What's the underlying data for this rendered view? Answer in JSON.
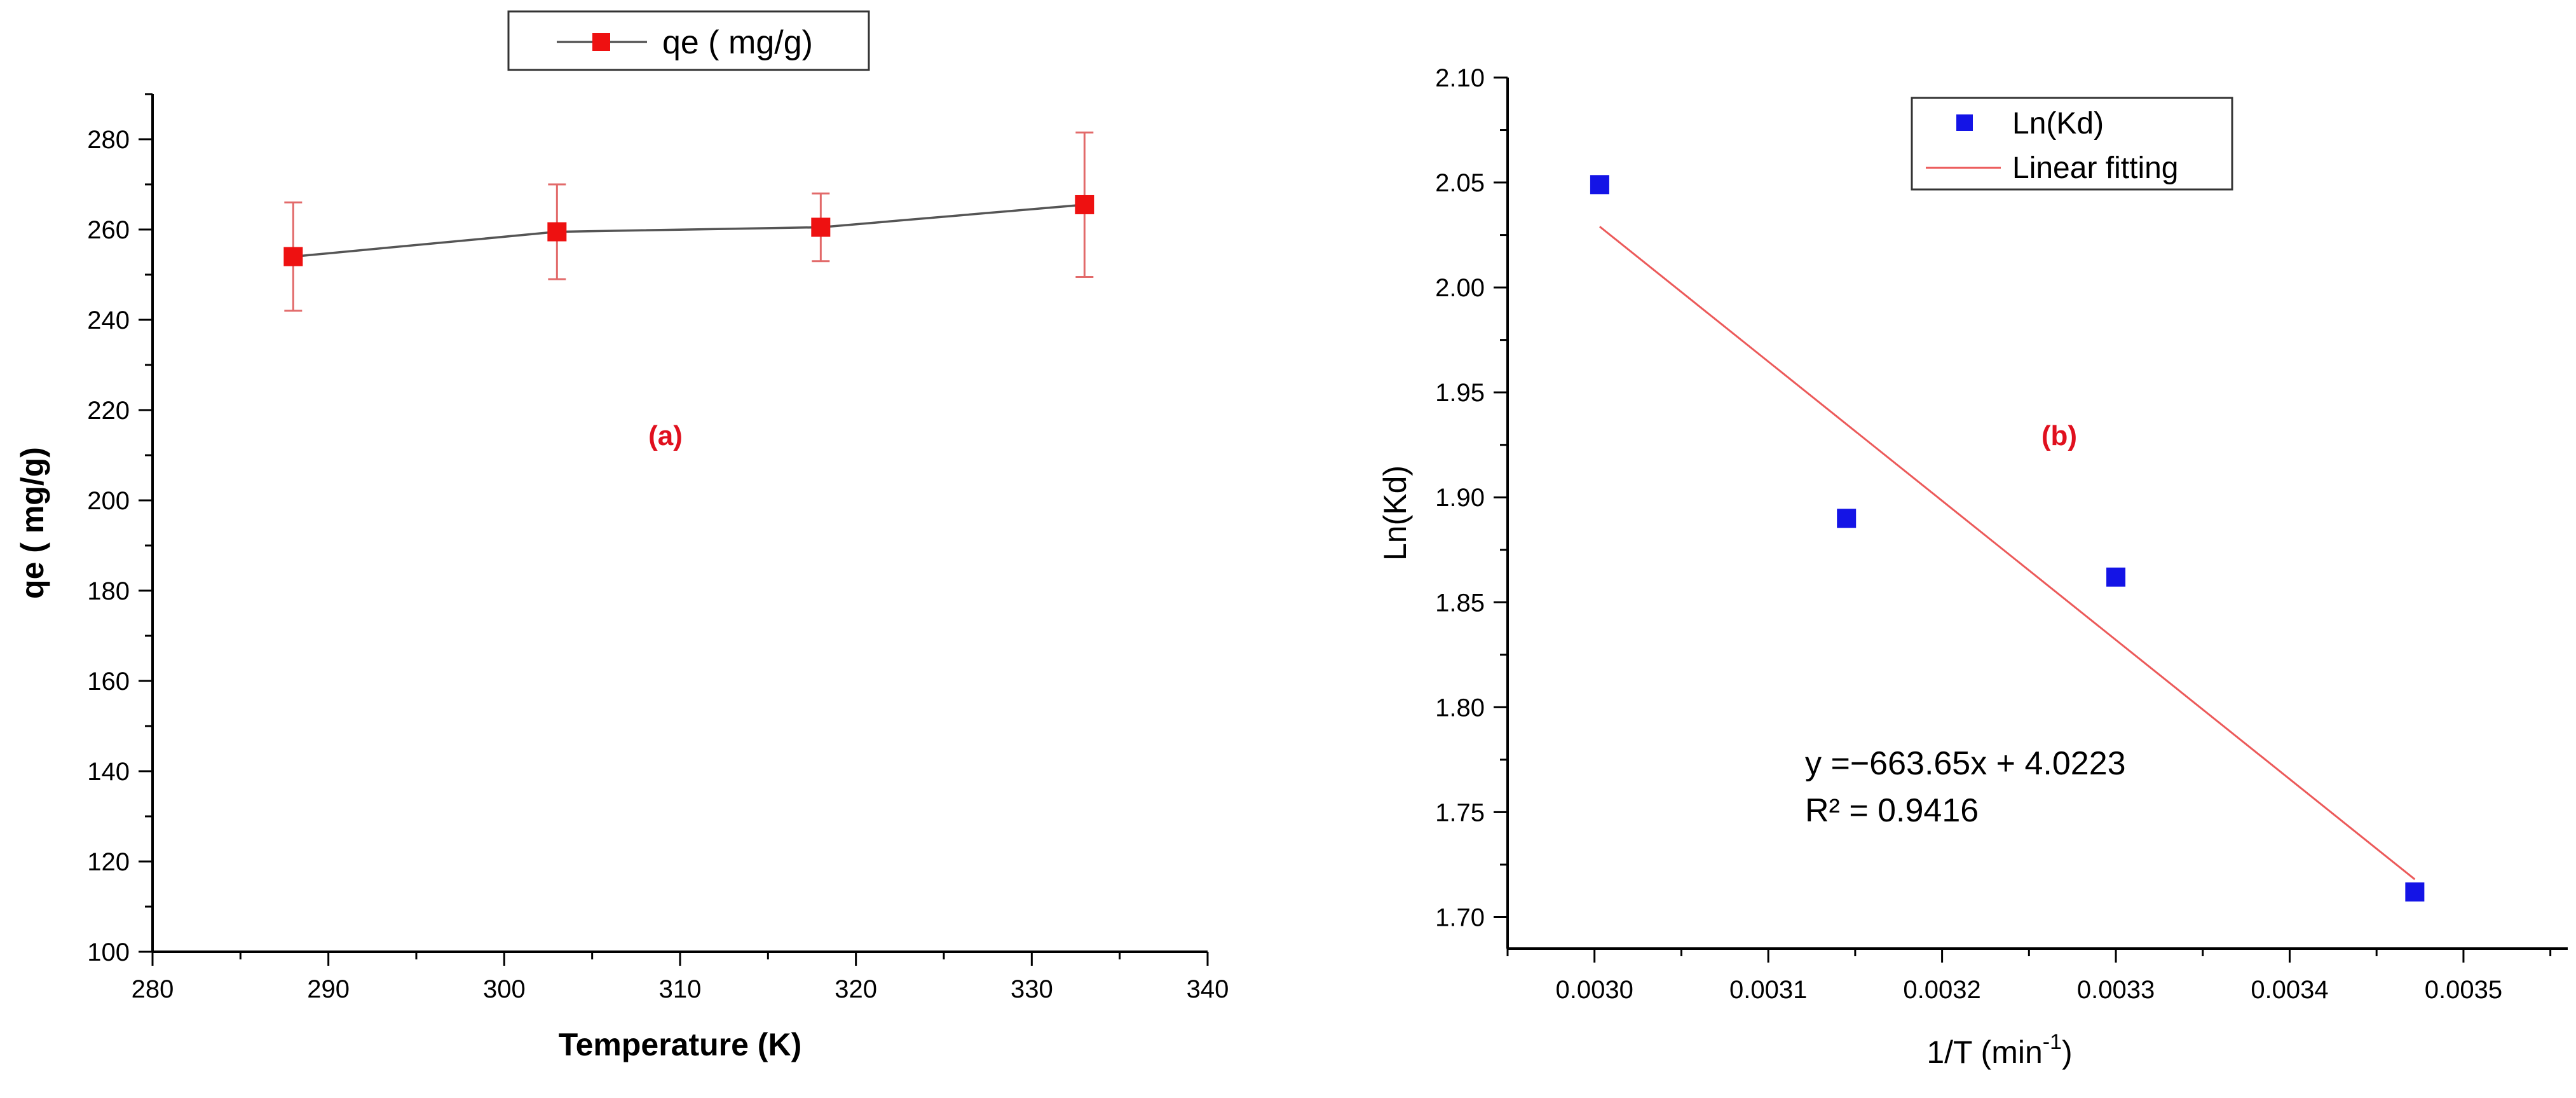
{
  "chart_data": [
    {
      "id": "a",
      "type": "line",
      "xlabel": "Temperature (K)",
      "ylabel": "qe ( mg/g)",
      "annotation": "(a)",
      "xlim": [
        280,
        340
      ],
      "ylim": [
        100,
        290
      ],
      "xticks": [
        "280",
        "290",
        "300",
        "310",
        "320",
        "330",
        "340"
      ],
      "yticks": [
        "100",
        "120",
        "140",
        "160",
        "180",
        "200",
        "220",
        "240",
        "260",
        "280"
      ],
      "legend": {
        "label": "qe ( mg/g)",
        "placement": "top-center"
      },
      "series": [
        {
          "name": "qe ( mg/g)",
          "x": [
            288,
            303,
            318,
            333
          ],
          "y": [
            254,
            259.5,
            260.5,
            265.5
          ],
          "err_low": [
            242,
            249,
            253,
            249.5
          ],
          "err_high": [
            266,
            270,
            268,
            281.5
          ],
          "marker_color": "#ee1111",
          "line_color": "#555555",
          "errorbar_color": "#e26a6a"
        }
      ],
      "annotation_color": "#e0101e"
    },
    {
      "id": "b",
      "type": "scatter",
      "xlabel": "1/T (min",
      "xlabel_sup": "-1",
      "xlabel_tail": ")",
      "ylabel": "Ln(Kd)",
      "annotation": "(b)",
      "xlim": [
        0.00295,
        0.00356
      ],
      "ylim": [
        1.685,
        2.1
      ],
      "xticks": [
        "0.0030",
        "0.0031",
        "0.0032",
        "0.0033",
        "0.0034",
        "0.0035"
      ],
      "yticks": [
        "1.70",
        "1.75",
        "1.80",
        "1.85",
        "1.90",
        "1.95",
        "2.00",
        "2.05",
        "2.10"
      ],
      "legend": {
        "scatter_label": "Ln(Kd)",
        "fit_label": "Linear fitting",
        "placement": "top-right"
      },
      "series": [
        {
          "name": "Ln(Kd)",
          "x": [
            0.003003,
            0.003145,
            0.0033,
            0.003472
          ],
          "y": [
            2.049,
            1.89,
            1.862,
            1.712
          ],
          "marker_color": "#1414e6"
        }
      ],
      "fit": {
        "name": "Linear fitting",
        "x": [
          0.003003,
          0.003472
        ],
        "y": [
          2.029,
          1.718
        ],
        "color": "#ec5a5a"
      },
      "equation": "y =−663.65x + 4.0223",
      "r2": "R² = 0.9416",
      "annotation_color": "#e0101e"
    }
  ]
}
